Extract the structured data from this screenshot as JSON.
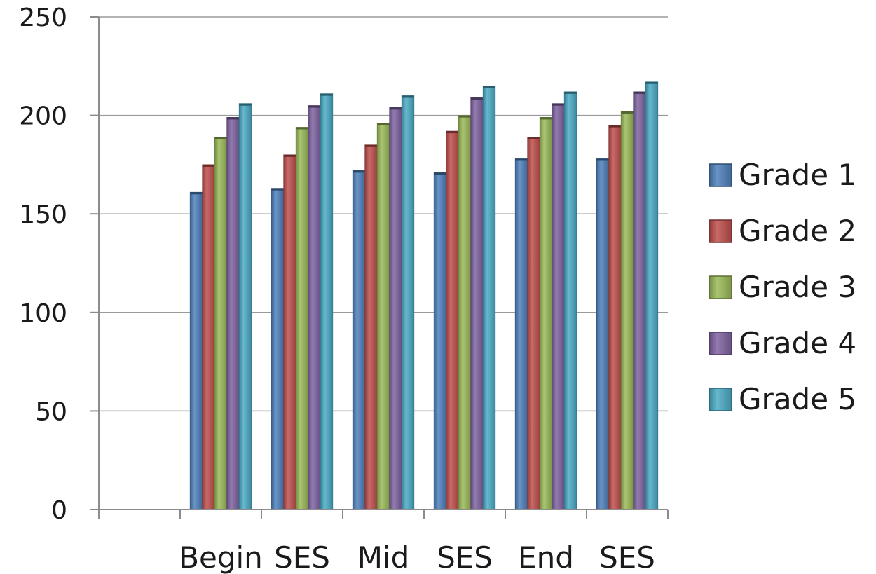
{
  "chart_data": {
    "type": "bar",
    "title": "",
    "xlabel": "",
    "ylabel": "",
    "ylim": [
      0,
      250
    ],
    "yticks": [
      "0",
      "50",
      "100",
      "150",
      "200",
      "250"
    ],
    "categories": [
      "",
      "Begin",
      "SES",
      "Mid",
      "SES",
      "End",
      "SES"
    ],
    "series": [
      {
        "name": "Grade 1",
        "color": "#4F81BD",
        "values": [
          null,
          161,
          163,
          172,
          171,
          178,
          178
        ]
      },
      {
        "name": "Grade 2",
        "color": "#C0504D",
        "values": [
          null,
          175,
          180,
          185,
          192,
          189,
          195
        ]
      },
      {
        "name": "Grade 3",
        "color": "#9BBB59",
        "values": [
          null,
          189,
          194,
          196,
          200,
          199,
          202
        ]
      },
      {
        "name": "Grade 4",
        "color": "#8064A2",
        "values": [
          null,
          199,
          205,
          204,
          209,
          206,
          212
        ]
      },
      {
        "name": "Grade 5",
        "color": "#4BACC6",
        "values": [
          null,
          206,
          211,
          210,
          215,
          212,
          217
        ]
      }
    ],
    "grid": true,
    "legend": "right"
  }
}
